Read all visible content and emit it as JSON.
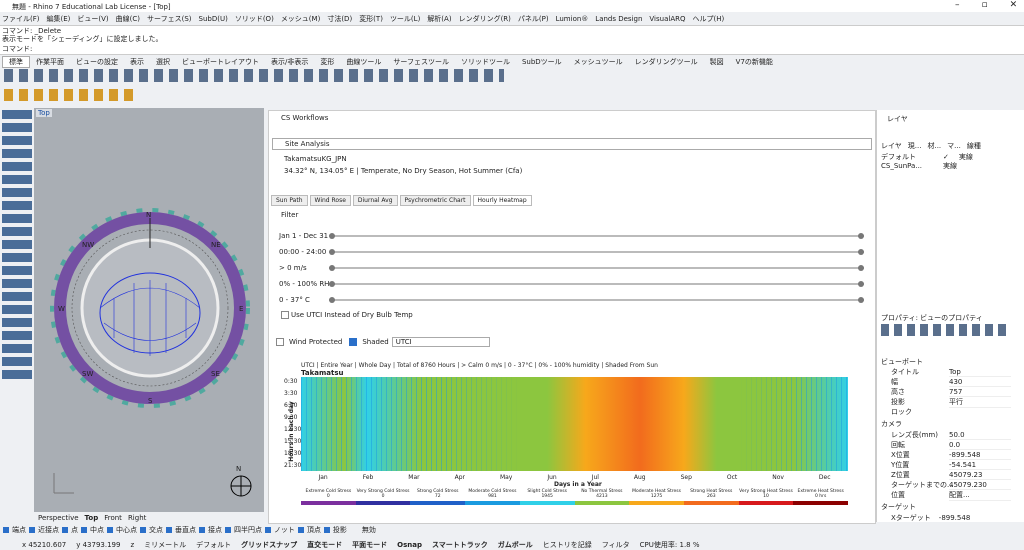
{
  "title_bar": "無題 - Rhino 7 Educational Lab License - [Top]",
  "menu": [
    "ファイル(F)",
    "編集(E)",
    "ビュー(V)",
    "曲線(C)",
    "サーフェス(S)",
    "SubD(U)",
    "ソリッド(O)",
    "メッシュ(M)",
    "寸法(D)",
    "変形(T)",
    "ツール(L)",
    "解析(A)",
    "レンダリング(R)",
    "パネル(P)",
    "Lumion®",
    "Lands Design",
    "VisualARQ",
    "ヘルプ(H)"
  ],
  "command": {
    "history": [
      "コマンド: _Delete",
      "表示モードを「シェーディング」に設定しました。"
    ],
    "prompt": "コマンド:"
  },
  "toolbar_tabs": [
    "標準",
    "作業平面",
    "ビューの設定",
    "表示",
    "選択",
    "ビューポートレイアウト",
    "表示/非表示",
    "変形",
    "曲線ツール",
    "サーフェスツール",
    "ソリッドツール",
    "SubDツール",
    "メッシュツール",
    "レンダリングツール",
    "製図",
    "V7の新機能"
  ],
  "viewport": {
    "label": "Top",
    "compass": {
      "n": "N",
      "nw": "NW",
      "ne": "NE",
      "w": "W",
      "e": "E",
      "sw": "SW",
      "se": "SE",
      "s": "S"
    },
    "tabs": [
      "Perspective",
      "Top",
      "Front",
      "Right"
    ]
  },
  "cs": {
    "title": "CS Workflows",
    "mode": "Site Analysis",
    "location": "TakamatsuKG_JPN",
    "climate": "34.32°  N, 134.05°  E | Temperate, No Dry Season, Hot Summer (Cfa)",
    "tabs": [
      "Sun Path",
      "Wind Rose",
      "Diurnal Avg",
      "Psychrometric Chart",
      "Hourly Heatmap"
    ],
    "filter": "Filter",
    "sliders": [
      "Jan 1 - Dec 31",
      "00:00 - 24:00",
      "> 0 m/s",
      "0% - 100% RH",
      "0 - 37° C"
    ],
    "utci_check": "Use UTCI Instead of Dry Bulb Temp",
    "wind_protected": "Wind Protected",
    "shaded": "Shaded",
    "select": "UTCI"
  },
  "heatmap": {
    "subtitle": "UTCI | Entire Year | Whole Day | Total of 8760 Hours | > Calm 0 m/s | 0 - 37°C | 0% - 100% humidity | Shaded From Sun",
    "title": "Takamatsu",
    "y_label": "Hours in each day",
    "x_label": "Days in a Year",
    "hours": [
      "0:30",
      "3:30",
      "6:30",
      "9:30",
      "12:30",
      "15:30",
      "18:30",
      "21:30"
    ],
    "months": [
      "Jan",
      "Feb",
      "Mar",
      "Apr",
      "May",
      "Jun",
      "Jul",
      "Aug",
      "Sep",
      "Oct",
      "Nov",
      "Dec"
    ],
    "legend": [
      {
        "label": "Extreme Cold Stress",
        "count": "0",
        "color": "#7b2f9e"
      },
      {
        "label": "Very Strong Cold Stress",
        "count": "0",
        "color": "#3030a0"
      },
      {
        "label": "Strong Cold Stress",
        "count": "72",
        "color": "#2060c8"
      },
      {
        "label": "Moderate Cold Stress",
        "count": "981",
        "color": "#1a9be0"
      },
      {
        "label": "Slight Cold Stress",
        "count": "1945",
        "color": "#30d0e8"
      },
      {
        "label": "No Thermal Stress",
        "count": "4213",
        "color": "#8cc63f"
      },
      {
        "label": "Moderate Heat Stress",
        "count": "1275",
        "color": "#f7a81b"
      },
      {
        "label": "Strong Heat Stress",
        "count": "263",
        "color": "#f26b1d"
      },
      {
        "label": "Very Strong Heat Stress",
        "count": "10",
        "color": "#d7191c"
      },
      {
        "label": "Extreme Heat Stress",
        "count": "0 hrs",
        "color": "#8b0000"
      }
    ]
  },
  "layers": {
    "title": "レイヤ",
    "headers": [
      "レイヤ",
      "現...",
      "材...",
      "マ...",
      "線種"
    ],
    "rows": [
      [
        "デフォルト",
        "✓",
        "実線"
      ],
      [
        "CS_SunPa...",
        "実線"
      ]
    ]
  },
  "properties": {
    "title": "プロパティ: ビューのプロパティ",
    "section": "ビューポート",
    "rows": [
      [
        "タイトル",
        "Top"
      ],
      [
        "幅",
        "430"
      ],
      [
        "高さ",
        "757"
      ],
      [
        "投影",
        "平行"
      ]
    ],
    "lock": "ロック",
    "camera": "カメラ",
    "camera_rows": [
      [
        "レンズ長(mm)",
        "50.0"
      ],
      [
        "回転",
        "0.0"
      ],
      [
        "X位置",
        "-899.548"
      ],
      [
        "Y位置",
        "-54.541"
      ],
      [
        "Z位置",
        "45079.23"
      ],
      [
        "ターゲットまでの...",
        "45079.230"
      ],
      [
        "位置",
        "配置..."
      ]
    ],
    "target": "ターゲット",
    "target_row": [
      "Xターゲット",
      "-899.548"
    ]
  },
  "osnap": [
    "端点",
    "近接点",
    "点",
    "中点",
    "中心点",
    "交点",
    "垂直点",
    "接点",
    "四半円点",
    "ノット",
    "頂点",
    "投影"
  ],
  "osnap_off": "無効",
  "status": [
    "x 45210.607",
    "y 43793.199",
    "z",
    "ミリメートル",
    "デフォルト",
    "グリッドスナップ",
    "直交モード",
    "平面モード",
    "Osnap",
    "スマートトラック",
    "ガムボール",
    "ヒストリを記録",
    "フィルタ",
    "CPU使用率: 1.8 %"
  ]
}
